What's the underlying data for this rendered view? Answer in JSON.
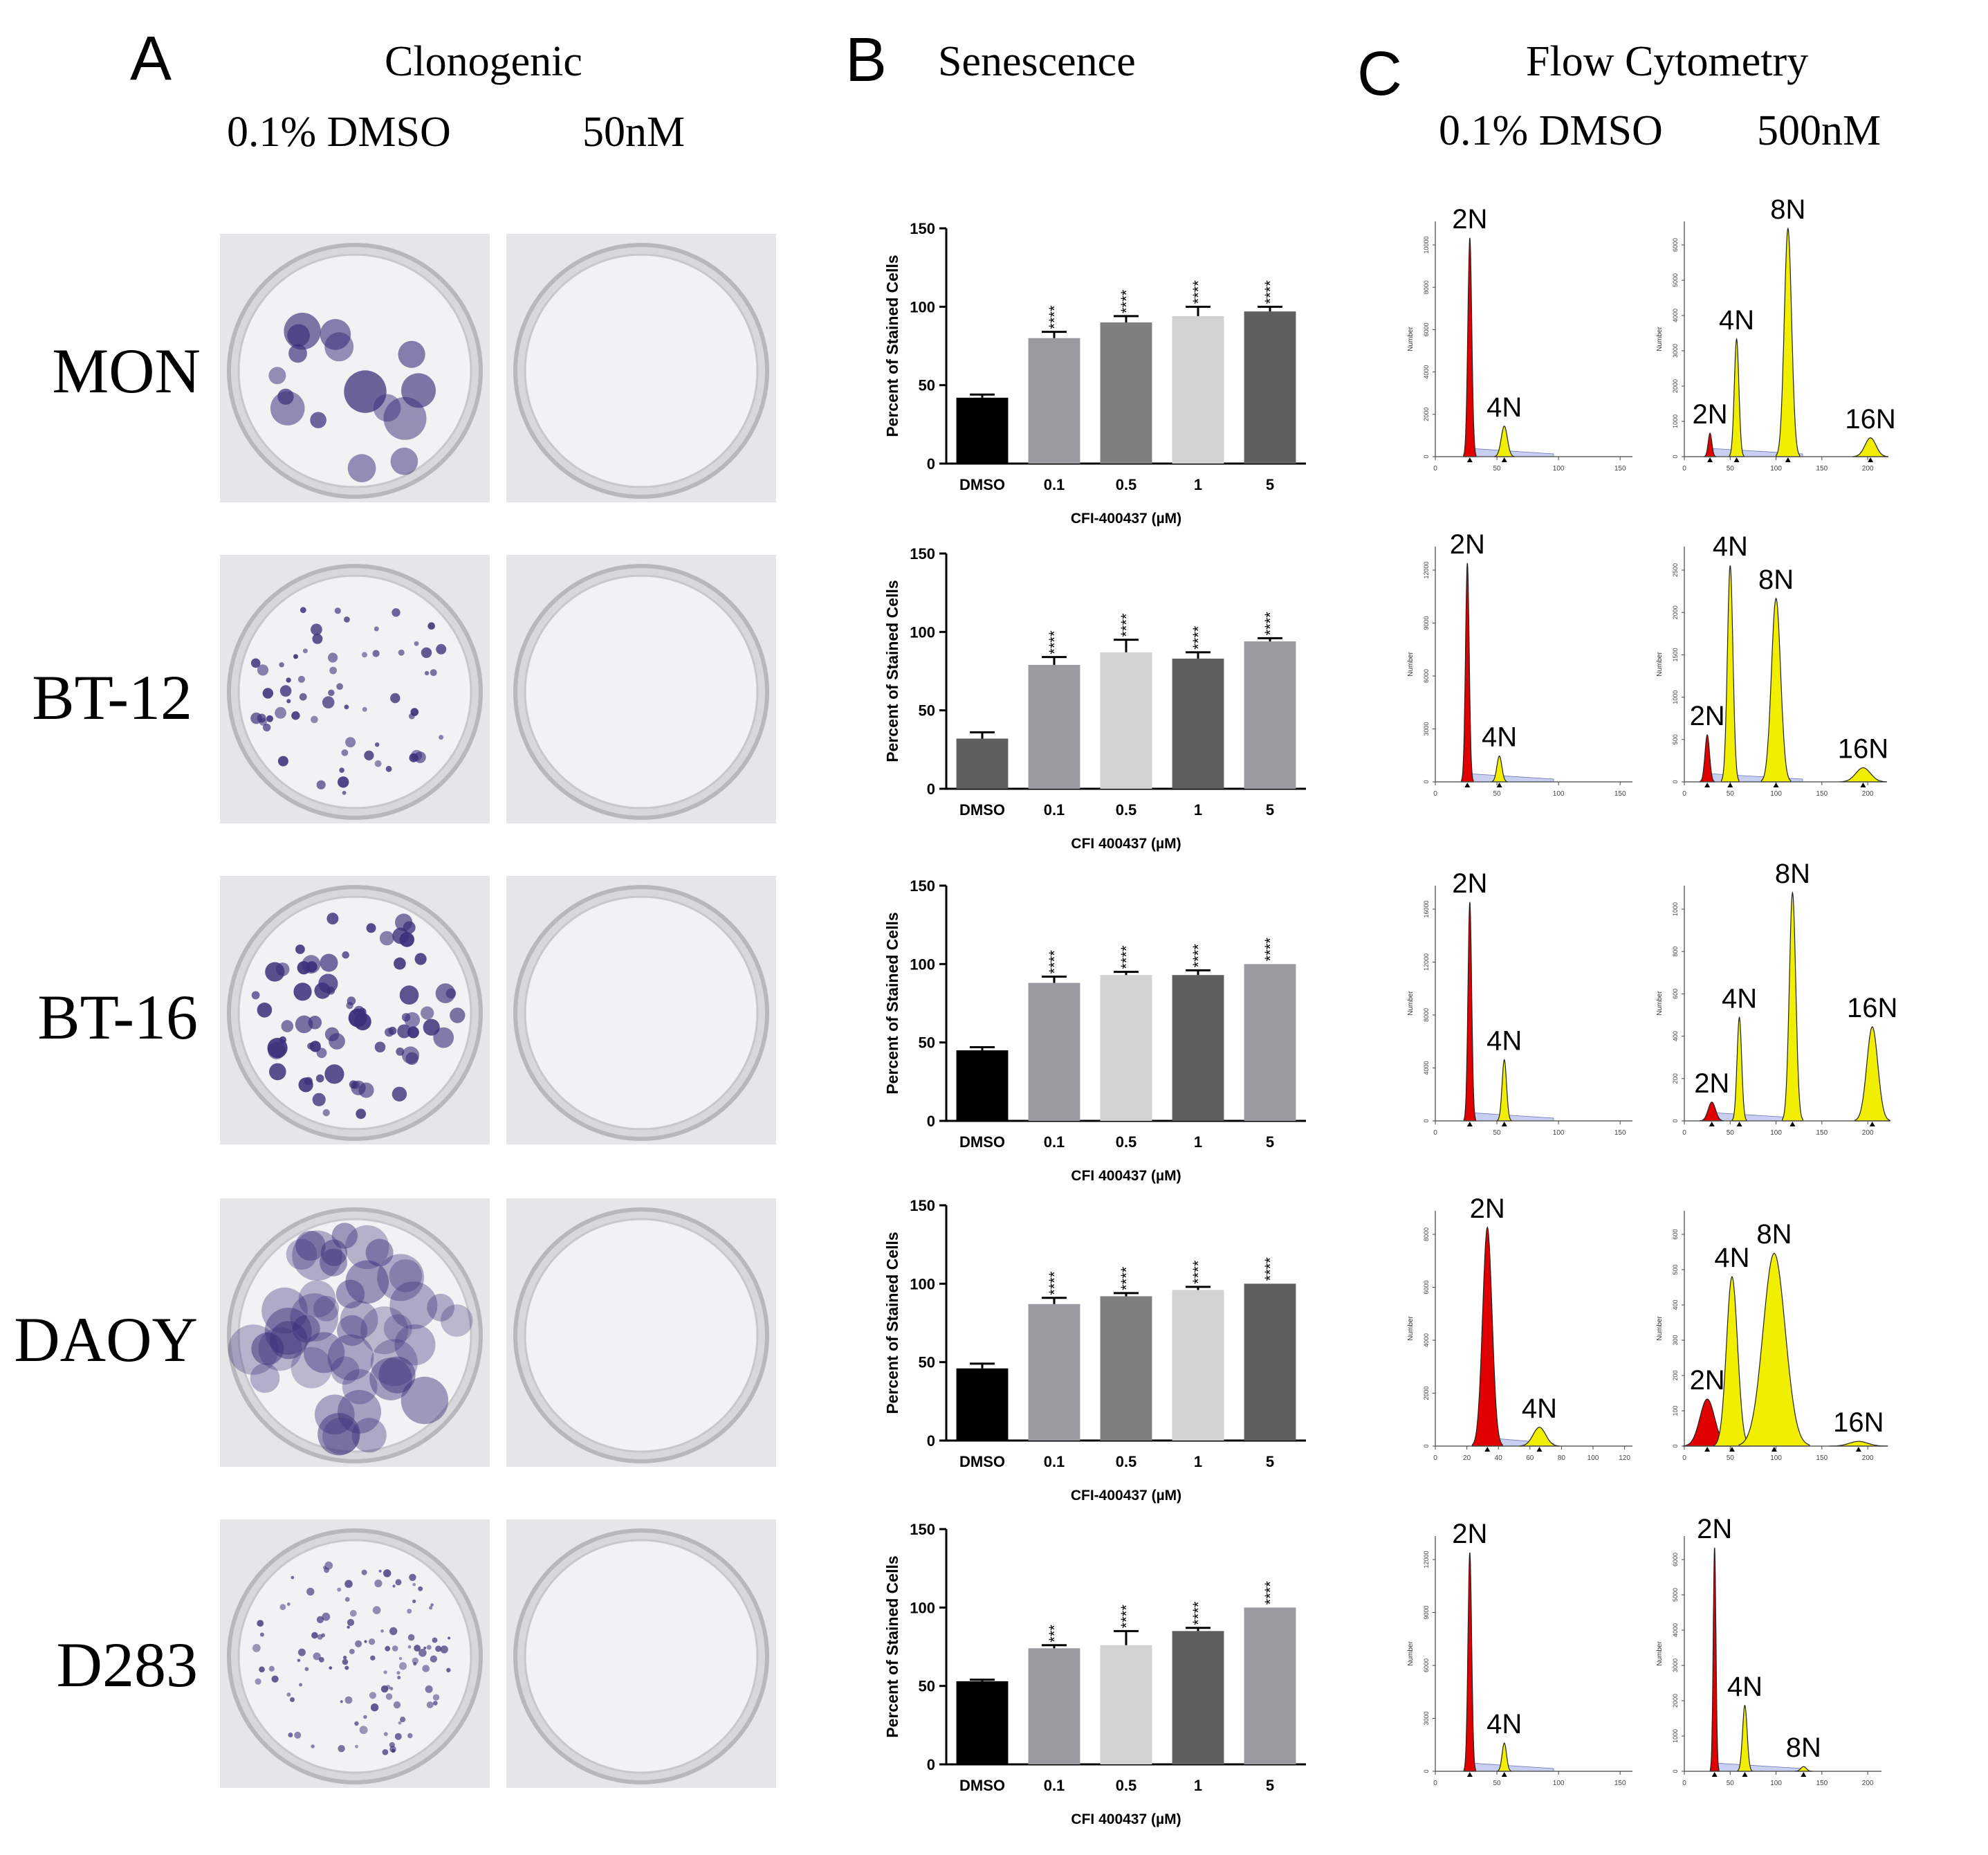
{
  "panels": {
    "a": {
      "letter": "A",
      "title": "Clonogenic",
      "col1": "0.1% DMSO",
      "col2": "50nM"
    },
    "b": {
      "letter": "B",
      "title": "Senescence"
    },
    "c": {
      "letter": "C",
      "title": "Flow Cytometry",
      "col1": "0.1% DMSO",
      "col2": "500nM"
    }
  },
  "rows": [
    "MON",
    "BT-12",
    "BT-16",
    "DAOY",
    "D283"
  ],
  "colors": {
    "red": "#e00000",
    "yellow": "#f2ee00",
    "bar_black": "#000000",
    "bar_gray1": "#9a9aa0",
    "bar_gray2": "#7f7f7f",
    "bar_light": "#d2d2d2",
    "bar_dark": "#5f5f5f",
    "stain": "#3b2f7a"
  },
  "chart_data": [
    {
      "type": "bar",
      "row": "MON",
      "ylabel": "Percent of  Stained Cells",
      "xlabel": "CFI-400437 (µM)",
      "categories": [
        "DMSO",
        "0.1",
        "0.5",
        "1",
        "5"
      ],
      "values": [
        42,
        80,
        90,
        94,
        97
      ],
      "errors": [
        2,
        4,
        4,
        6,
        3
      ],
      "significance": [
        "",
        "****",
        "****",
        "****",
        "****"
      ],
      "ylim": [
        0,
        150
      ],
      "yticks": [
        "0",
        "50",
        "100",
        "150"
      ]
    },
    {
      "type": "bar",
      "row": "BT-12",
      "ylabel": "Percent of  Stained Cells",
      "xlabel": "CFI 400437 (µM)",
      "categories": [
        "DMSO",
        "0.1",
        "0.5",
        "1",
        "5"
      ],
      "values": [
        32,
        79,
        87,
        83,
        94
      ],
      "errors": [
        4,
        5,
        8,
        4,
        2
      ],
      "significance": [
        "",
        "****",
        "****",
        "****",
        "****"
      ],
      "ylim": [
        0,
        150
      ],
      "yticks": [
        "0",
        "50",
        "100",
        "150"
      ]
    },
    {
      "type": "bar",
      "row": "BT-16",
      "ylabel": "Percent of  Stained Cells",
      "xlabel": "CFI 400437 (µM)",
      "categories": [
        "DMSO",
        "0.1",
        "0.5",
        "1",
        "5"
      ],
      "values": [
        45,
        88,
        93,
        93,
        100
      ],
      "errors": [
        2,
        4,
        2,
        3,
        0
      ],
      "significance": [
        "",
        "****",
        "****",
        "****",
        "****"
      ],
      "ylim": [
        0,
        150
      ],
      "yticks": [
        "0",
        "50",
        "100",
        "150"
      ]
    },
    {
      "type": "bar",
      "row": "DAOY",
      "ylabel": "Percent of  Stained Cells",
      "xlabel": "CFI-400437 (µM)",
      "categories": [
        "DMSO",
        "0.1",
        "0.5",
        "1",
        "5"
      ],
      "values": [
        46,
        87,
        92,
        96,
        100
      ],
      "errors": [
        3,
        4,
        2,
        2,
        0
      ],
      "significance": [
        "",
        "****",
        "****",
        "****",
        "****"
      ],
      "ylim": [
        0,
        150
      ],
      "yticks": [
        "0",
        "50",
        "100",
        "150"
      ]
    },
    {
      "type": "bar",
      "row": "D283",
      "ylabel": "Percent of  Stained Cells",
      "xlabel": "CFI 400437 (µM)",
      "categories": [
        "DMSO",
        "0.1",
        "0.5",
        "1",
        "5"
      ],
      "values": [
        53,
        74,
        76,
        85,
        100
      ],
      "errors": [
        1,
        2,
        9,
        2,
        0
      ],
      "significance": [
        "",
        "***",
        "****",
        "****",
        "****"
      ],
      "ylim": [
        0,
        150
      ],
      "yticks": [
        "0",
        "50",
        "100",
        "150"
      ]
    }
  ],
  "flow": [
    {
      "row": "MON",
      "dmso": {
        "ylabel": "Number",
        "yticks": [
          "0",
          "2000",
          "4000",
          "6000",
          "8000",
          "10000"
        ],
        "xticks": [
          "0",
          "50",
          "100",
          "150"
        ],
        "xmax": 160,
        "peaks": [
          {
            "label": "2N",
            "x": 28,
            "h": 0.93,
            "w": 1.6,
            "fill": "red"
          },
          {
            "label": "4N",
            "x": 56,
            "h": 0.13,
            "w": 2.5,
            "fill": "yellow"
          }
        ]
      },
      "treated": {
        "ylabel": "Number",
        "yticks": [
          "0",
          "1000",
          "2000",
          "3000",
          "4000",
          "5000",
          "6000"
        ],
        "xticks": [
          "0",
          "50",
          "100",
          "150",
          "200"
        ],
        "xmax": 215,
        "peaks": [
          {
            "label": "2N",
            "x": 28,
            "h": 0.1,
            "w": 2,
            "fill": "red"
          },
          {
            "label": "4N",
            "x": 57,
            "h": 0.5,
            "w": 2.5,
            "fill": "yellow"
          },
          {
            "label": "8N",
            "x": 113,
            "h": 0.97,
            "w": 4,
            "fill": "yellow"
          },
          {
            "label": "16N",
            "x": 203,
            "h": 0.08,
            "w": 6,
            "fill": "yellow"
          }
        ]
      }
    },
    {
      "row": "BT-12",
      "dmso": {
        "ylabel": "Number",
        "yticks": [
          "0",
          "3000",
          "6000",
          "9000",
          "12000"
        ],
        "xticks": [
          "0",
          "50",
          "100",
          "150"
        ],
        "xmax": 160,
        "peaks": [
          {
            "label": "2N",
            "x": 26,
            "h": 0.93,
            "w": 1.5,
            "fill": "red"
          },
          {
            "label": "4N",
            "x": 52,
            "h": 0.11,
            "w": 2,
            "fill": "yellow"
          }
        ]
      },
      "treated": {
        "ylabel": "Number",
        "yticks": [
          "0",
          "500",
          "1000",
          "1500",
          "2000",
          "2500"
        ],
        "xticks": [
          "0",
          "50",
          "100",
          "150",
          "200"
        ],
        "xmax": 215,
        "peaks": [
          {
            "label": "2N",
            "x": 25,
            "h": 0.2,
            "w": 2.5,
            "fill": "red"
          },
          {
            "label": "4N",
            "x": 50,
            "h": 0.92,
            "w": 3,
            "fill": "yellow"
          },
          {
            "label": "8N",
            "x": 100,
            "h": 0.78,
            "w": 5,
            "fill": "yellow"
          },
          {
            "label": "16N",
            "x": 195,
            "h": 0.06,
            "w": 8,
            "fill": "yellow"
          }
        ]
      }
    },
    {
      "row": "BT-16",
      "dmso": {
        "ylabel": "Number",
        "yticks": [
          "0",
          "4000",
          "8000",
          "12000",
          "16000"
        ],
        "xticks": [
          "0",
          "50",
          "100",
          "150"
        ],
        "xmax": 160,
        "peaks": [
          {
            "label": "2N",
            "x": 28,
            "h": 0.93,
            "w": 1.5,
            "fill": "red"
          },
          {
            "label": "4N",
            "x": 56,
            "h": 0.26,
            "w": 1.8,
            "fill": "yellow"
          }
        ]
      },
      "treated": {
        "ylabel": "Number",
        "yticks": [
          "0",
          "200",
          "400",
          "600",
          "800",
          "1000"
        ],
        "xticks": [
          "0",
          "50",
          "100",
          "150",
          "200"
        ],
        "xmax": 215,
        "peaks": [
          {
            "label": "2N",
            "x": 30,
            "h": 0.08,
            "w": 4,
            "fill": "red"
          },
          {
            "label": "4N",
            "x": 60,
            "h": 0.44,
            "w": 2.5,
            "fill": "yellow"
          },
          {
            "label": "8N",
            "x": 118,
            "h": 0.97,
            "w": 3.5,
            "fill": "yellow"
          },
          {
            "label": "16N",
            "x": 205,
            "h": 0.4,
            "w": 6,
            "fill": "yellow"
          }
        ]
      }
    },
    {
      "row": "DAOY",
      "dmso": {
        "ylabel": "Number",
        "yticks": [
          "0",
          "2000",
          "4000",
          "6000",
          "8000"
        ],
        "xticks": [
          "0",
          "20",
          "40",
          "60",
          "80",
          "100",
          "120"
        ],
        "xmax": 125,
        "peaks": [
          {
            "label": "2N",
            "x": 33,
            "h": 0.93,
            "w": 3,
            "fill": "red"
          },
          {
            "label": "4N",
            "x": 66,
            "h": 0.08,
            "w": 4,
            "fill": "yellow"
          }
        ]
      },
      "treated": {
        "ylabel": "Number",
        "yticks": [
          "0",
          "100",
          "200",
          "300",
          "400",
          "500",
          "600"
        ],
        "xticks": [
          "0",
          "50",
          "100",
          "150",
          "200"
        ],
        "xmax": 215,
        "peaks": [
          {
            "label": "2N",
            "x": 25,
            "h": 0.2,
            "w": 8,
            "fill": "red"
          },
          {
            "label": "4N",
            "x": 52,
            "h": 0.72,
            "w": 6,
            "fill": "yellow"
          },
          {
            "label": "8N",
            "x": 98,
            "h": 0.82,
            "w": 12,
            "fill": "yellow"
          },
          {
            "label": "16N",
            "x": 190,
            "h": 0.02,
            "w": 10,
            "fill": "yellow"
          }
        ]
      }
    },
    {
      "row": "D283",
      "dmso": {
        "ylabel": "Number",
        "yticks": [
          "0",
          "3000",
          "6000",
          "9000",
          "12000"
        ],
        "xticks": [
          "0",
          "50",
          "100",
          "150"
        ],
        "xmax": 160,
        "peaks": [
          {
            "label": "2N",
            "x": 28,
            "h": 0.93,
            "w": 1.5,
            "fill": "red"
          },
          {
            "label": "4N",
            "x": 56,
            "h": 0.12,
            "w": 1.8,
            "fill": "yellow"
          }
        ]
      },
      "treated": {
        "ylabel": "Number",
        "yticks": [
          "0",
          "1000",
          "2000",
          "3000",
          "4000",
          "5000",
          "6000"
        ],
        "xticks": [
          "0",
          "50",
          "100",
          "150",
          "200"
        ],
        "xmax": 215,
        "peaks": [
          {
            "label": "2N",
            "x": 33,
            "h": 0.95,
            "w": 1.5,
            "fill": "red"
          },
          {
            "label": "4N",
            "x": 66,
            "h": 0.28,
            "w": 2.5,
            "fill": "yellow"
          },
          {
            "label": "8N",
            "x": 130,
            "h": 0.02,
            "w": 3,
            "fill": "yellow"
          }
        ]
      }
    }
  ]
}
